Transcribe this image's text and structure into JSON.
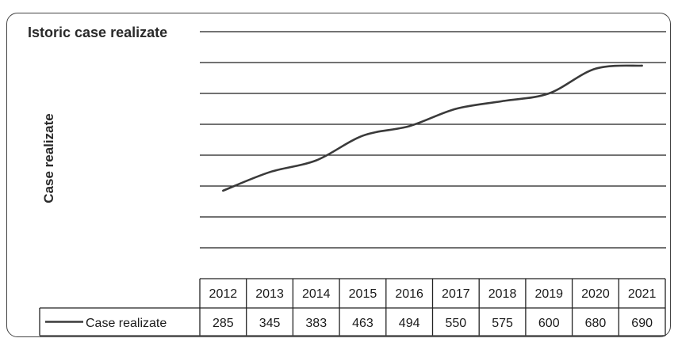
{
  "chart_data": {
    "type": "line",
    "title": "Istoric case realizate",
    "ylabel": "Case realizate",
    "xlabel": "",
    "categories": [
      "2012",
      "2013",
      "2014",
      "2015",
      "2016",
      "2017",
      "2018",
      "2019",
      "2020",
      "2021"
    ],
    "series": [
      {
        "name": "Case realizate",
        "values": [
          285,
          345,
          383,
          463,
          494,
          550,
          575,
          600,
          680,
          690
        ],
        "color": "#3a3a3a"
      }
    ],
    "ylim": [
      0,
      800
    ],
    "grid": true,
    "legend": "data-table",
    "data_table": true
  }
}
